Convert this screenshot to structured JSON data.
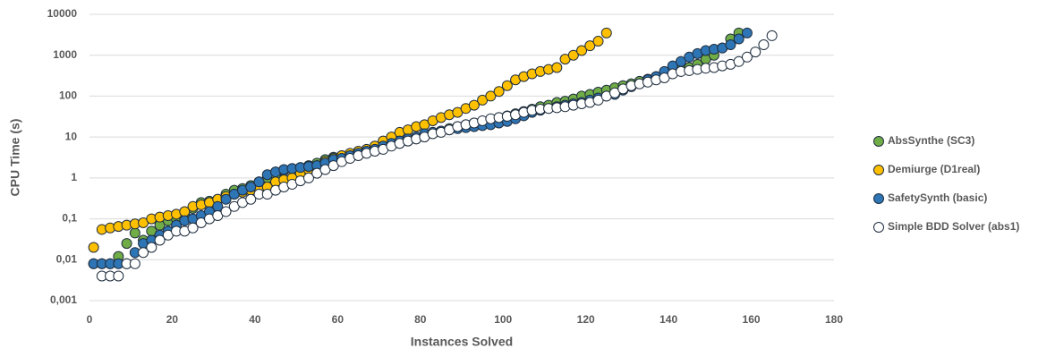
{
  "chart_data": {
    "type": "scatter",
    "x_label": "Instances Solved",
    "y_label": "CPU Time (s)",
    "log_y": true,
    "grid": true,
    "legend": "right",
    "xlim": [
      0,
      180
    ],
    "xticks": [
      0,
      20,
      40,
      60,
      80,
      100,
      120,
      140,
      160,
      180
    ],
    "ylim": [
      0.001,
      10000
    ],
    "yticks": [
      {
        "value": 0.001,
        "label": "0,001"
      },
      {
        "value": 0.01,
        "label": "0,01"
      },
      {
        "value": 0.1,
        "label": "0,1"
      },
      1,
      10,
      100,
      1000,
      10000
    ],
    "x": [
      1,
      3,
      5,
      7,
      9,
      11,
      13,
      15,
      17,
      19,
      21,
      23,
      25,
      27,
      29,
      31,
      33,
      35,
      37,
      39,
      41,
      43,
      45,
      47,
      49,
      51,
      53,
      55,
      57,
      59,
      61,
      63,
      65,
      67,
      69,
      71,
      73,
      75,
      77,
      79,
      81,
      83,
      85,
      87,
      89,
      91,
      93,
      95,
      97,
      99,
      101,
      103,
      105,
      107,
      109,
      111,
      113,
      115,
      117,
      119,
      121,
      123,
      125,
      127,
      129,
      131,
      133,
      135,
      137,
      139,
      141,
      143,
      145,
      147,
      149,
      151,
      153,
      155,
      157,
      159,
      161,
      163,
      165
    ],
    "series": [
      {
        "name": "AbsSynthe (SC3)",
        "color": "#70ad47",
        "values": [
          0.008,
          0.008,
          0.008,
          0.012,
          0.025,
          0.045,
          0.03,
          0.05,
          0.07,
          0.09,
          0.1,
          0.13,
          0.18,
          0.25,
          0.27,
          0.3,
          0.4,
          0.5,
          0.55,
          0.65,
          0.8,
          1,
          1.2,
          1.5,
          1.7,
          1.8,
          2,
          2.3,
          2.8,
          3.2,
          3.5,
          3.8,
          4.2,
          4.8,
          5.5,
          6,
          6.5,
          7,
          8,
          9,
          11,
          13,
          14,
          16,
          18,
          20,
          22,
          24,
          27,
          30,
          33,
          37,
          42,
          48,
          55,
          60,
          70,
          75,
          85,
          100,
          110,
          125,
          140,
          160,
          180,
          200,
          230,
          260,
          300,
          350,
          400,
          450,
          500,
          600,
          800,
          1000,
          1500,
          2500,
          3500,
          null,
          null,
          null,
          null
        ]
      },
      {
        "name": "Demiurge (D1real)",
        "color": "#ffc000",
        "values": [
          0.02,
          0.055,
          0.06,
          0.065,
          0.07,
          0.075,
          0.08,
          0.1,
          0.11,
          0.12,
          0.13,
          0.15,
          0.2,
          0.22,
          0.25,
          0.3,
          0.35,
          0.4,
          0.45,
          0.5,
          0.55,
          0.6,
          0.8,
          0.9,
          1,
          1.3,
          1.6,
          2,
          2.5,
          3,
          3.5,
          4,
          4.5,
          5,
          6,
          8,
          10,
          13,
          15,
          18,
          20,
          25,
          30,
          35,
          40,
          50,
          60,
          80,
          100,
          130,
          180,
          250,
          300,
          350,
          400,
          450,
          500,
          800,
          1000,
          1300,
          1700,
          2200,
          3500,
          null,
          null,
          null,
          null,
          null,
          null,
          null,
          null,
          null,
          null,
          null,
          null,
          null,
          null,
          null,
          null,
          null,
          null,
          null,
          null
        ]
      },
      {
        "name": "SafetySynth (basic)",
        "color": "#2e75b6",
        "values": [
          0.008,
          0.008,
          0.008,
          0.008,
          0.008,
          0.015,
          0.025,
          0.03,
          0.04,
          0.05,
          0.07,
          0.09,
          0.1,
          0.12,
          0.15,
          0.2,
          0.3,
          0.4,
          0.5,
          0.6,
          0.8,
          1.2,
          1.4,
          1.6,
          1.7,
          1.8,
          1.9,
          2,
          2.3,
          2.8,
          3,
          3.5,
          4,
          4.5,
          5,
          6,
          7,
          8,
          9,
          10,
          12,
          13,
          14,
          15,
          16,
          17,
          18,
          19,
          20,
          22,
          24,
          28,
          33,
          40,
          45,
          50,
          55,
          60,
          65,
          70,
          80,
          90,
          100,
          110,
          140,
          170,
          200,
          250,
          300,
          400,
          550,
          700,
          900,
          1100,
          1300,
          1400,
          1500,
          1800,
          2500,
          3500,
          null,
          null,
          null
        ]
      },
      {
        "name": "Simple BDD Solver (abs1)",
        "color": "#ffffff",
        "values": [
          null,
          0.004,
          0.004,
          0.004,
          0.008,
          0.008,
          0.015,
          0.02,
          0.03,
          0.04,
          0.05,
          0.05,
          0.06,
          0.08,
          0.1,
          0.12,
          0.15,
          0.2,
          0.25,
          0.3,
          0.4,
          0.4,
          0.5,
          0.6,
          0.7,
          0.85,
          1,
          1.3,
          1.6,
          2,
          2.5,
          3,
          3.5,
          4,
          4.5,
          5,
          6,
          7,
          8,
          9,
          10,
          12,
          13,
          15,
          18,
          20,
          22,
          25,
          28,
          30,
          32,
          35,
          40,
          45,
          48,
          50,
          52,
          55,
          60,
          65,
          70,
          80,
          100,
          120,
          150,
          180,
          200,
          220,
          250,
          280,
          350,
          400,
          420,
          450,
          480,
          500,
          550,
          600,
          700,
          900,
          1200,
          1800,
          3000
        ]
      }
    ]
  }
}
